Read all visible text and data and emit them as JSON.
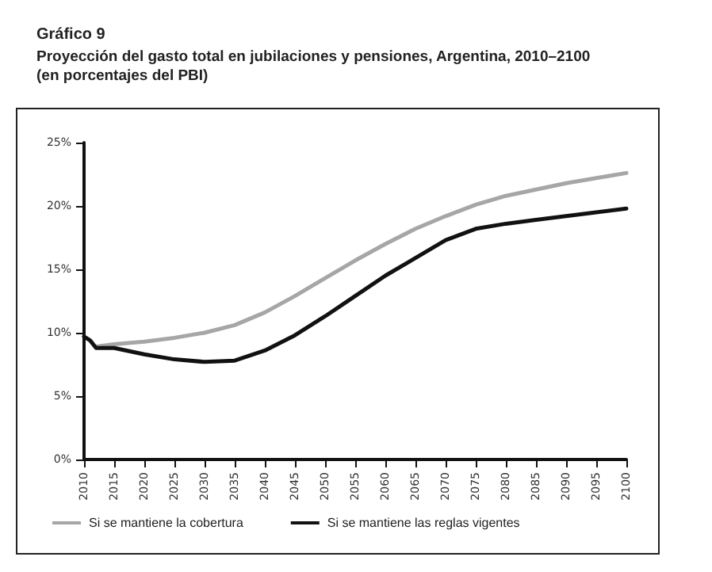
{
  "chart_data": {
    "type": "line",
    "title": "Gráfico 9",
    "subtitle": "Proyección del gasto total en jubilaciones y pensiones, Argentina, 2010–2100\n(en porcentajes del PBI)",
    "series": [
      {
        "name": "Si se mantiene la cobertura",
        "color": "#a6a6a6",
        "x": [
          2012,
          2015,
          2020,
          2025,
          2030,
          2035,
          2040,
          2045,
          2050,
          2055,
          2060,
          2065,
          2070,
          2075,
          2080,
          2085,
          2090,
          2095,
          2100
        ],
        "values": [
          8.9,
          9.1,
          9.3,
          9.6,
          10.0,
          10.6,
          11.6,
          12.9,
          14.3,
          15.7,
          17.0,
          18.2,
          19.2,
          20.1,
          20.8,
          21.3,
          21.8,
          22.2,
          22.6
        ]
      },
      {
        "name": "Si se mantiene las reglas vigentes",
        "color": "#111111",
        "x": [
          2010,
          2011,
          2012,
          2015,
          2020,
          2025,
          2030,
          2035,
          2040,
          2045,
          2050,
          2055,
          2060,
          2065,
          2070,
          2075,
          2080,
          2085,
          2090,
          2095,
          2100
        ],
        "values": [
          9.7,
          9.4,
          8.8,
          8.8,
          8.3,
          7.9,
          7.7,
          7.8,
          8.6,
          9.8,
          11.3,
          12.9,
          14.5,
          15.9,
          17.3,
          18.2,
          18.6,
          18.9,
          19.2,
          19.5,
          19.8
        ]
      }
    ],
    "xlim": [
      2010,
      2100
    ],
    "xticks": [
      2010,
      2015,
      2020,
      2025,
      2030,
      2035,
      2040,
      2045,
      2050,
      2055,
      2060,
      2065,
      2070,
      2075,
      2080,
      2085,
      2090,
      2095,
      2100
    ],
    "ylim": [
      0,
      25
    ],
    "yticks": [
      {
        "value": 0,
        "label": "0%"
      },
      {
        "value": 5,
        "label": "5%"
      },
      {
        "value": 10,
        "label": "10%"
      },
      {
        "value": 15,
        "label": "15%"
      },
      {
        "value": 20,
        "label": "20%"
      },
      {
        "value": 25,
        "label": "25%"
      }
    ],
    "legend": "bottom",
    "grid": false,
    "marker": "none",
    "line_style": "solid"
  }
}
